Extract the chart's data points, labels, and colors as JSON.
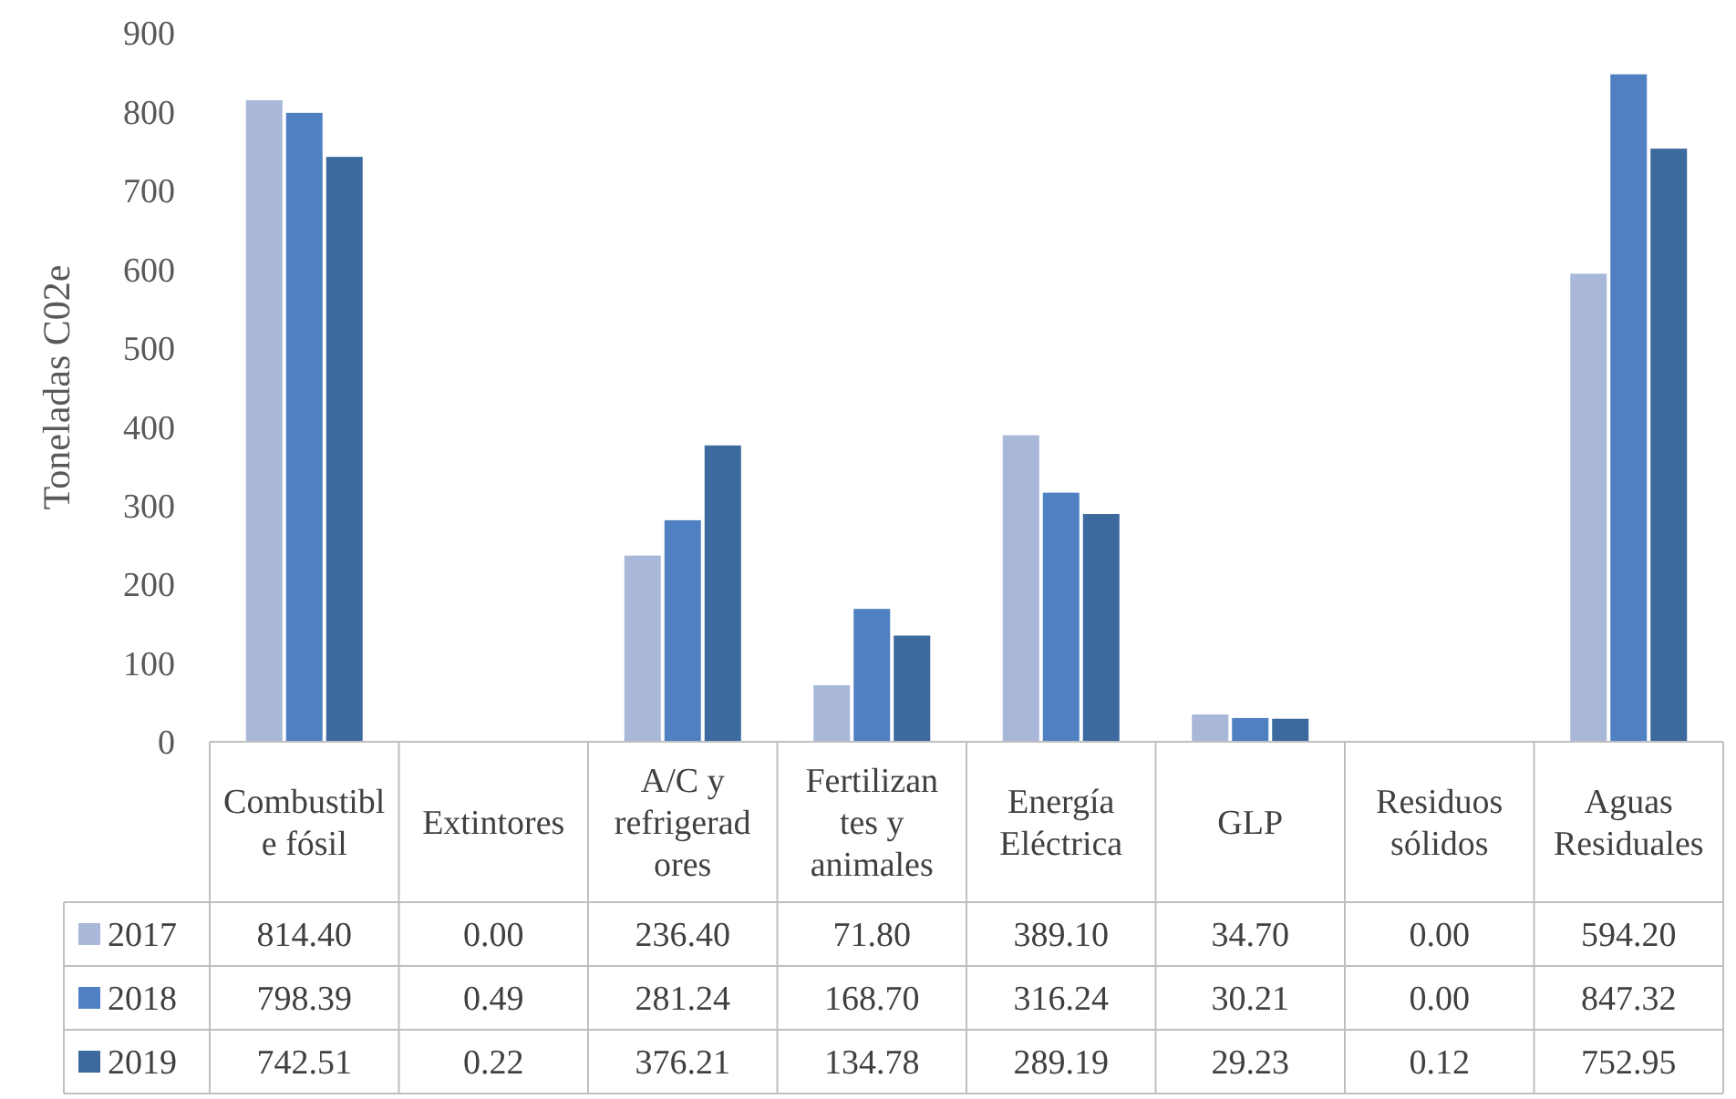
{
  "chart_data": {
    "type": "bar",
    "ylabel": "Toneladas C02e",
    "categories": [
      "Combustible fósil",
      "Extintores",
      "A/C y refrigeradores",
      "Fertilizantes y animales",
      "Energía Eléctrica",
      "GLP",
      "Residuos sólidos",
      "Aguas Residuales"
    ],
    "series": [
      {
        "name": "2017",
        "color": "#a9b8d8",
        "values": [
          814.4,
          0,
          236.4,
          71.8,
          389.1,
          34.7,
          0,
          594.2
        ],
        "value_labels": [
          "814.40",
          "0.00",
          "236.40",
          "71.80",
          "389.10",
          "34.70",
          "0.00",
          "594.20"
        ]
      },
      {
        "name": "2018",
        "color": "#4f81c2",
        "values": [
          798.39,
          0.49,
          281.24,
          168.7,
          316.24,
          30.21,
          0,
          847.32
        ],
        "value_labels": [
          "798.39",
          "0.49",
          "281.24",
          "168.70",
          "316.24",
          "30.21",
          "0.00",
          "847.32"
        ]
      },
      {
        "name": "2019",
        "color": "#3c6a9e",
        "values": [
          742.51,
          0.22,
          376.21,
          134.78,
          289.19,
          29.23,
          0.12,
          752.95
        ],
        "value_labels": [
          "742.51",
          "0.22",
          "376.21",
          "134.78",
          "289.19",
          "29.23",
          "0.12",
          "752.95"
        ]
      }
    ],
    "ylim": [
      0,
      900
    ],
    "yticks": [
      0,
      100,
      200,
      300,
      400,
      500,
      600,
      700,
      800,
      900
    ],
    "grid": false,
    "legend": "bottom"
  }
}
